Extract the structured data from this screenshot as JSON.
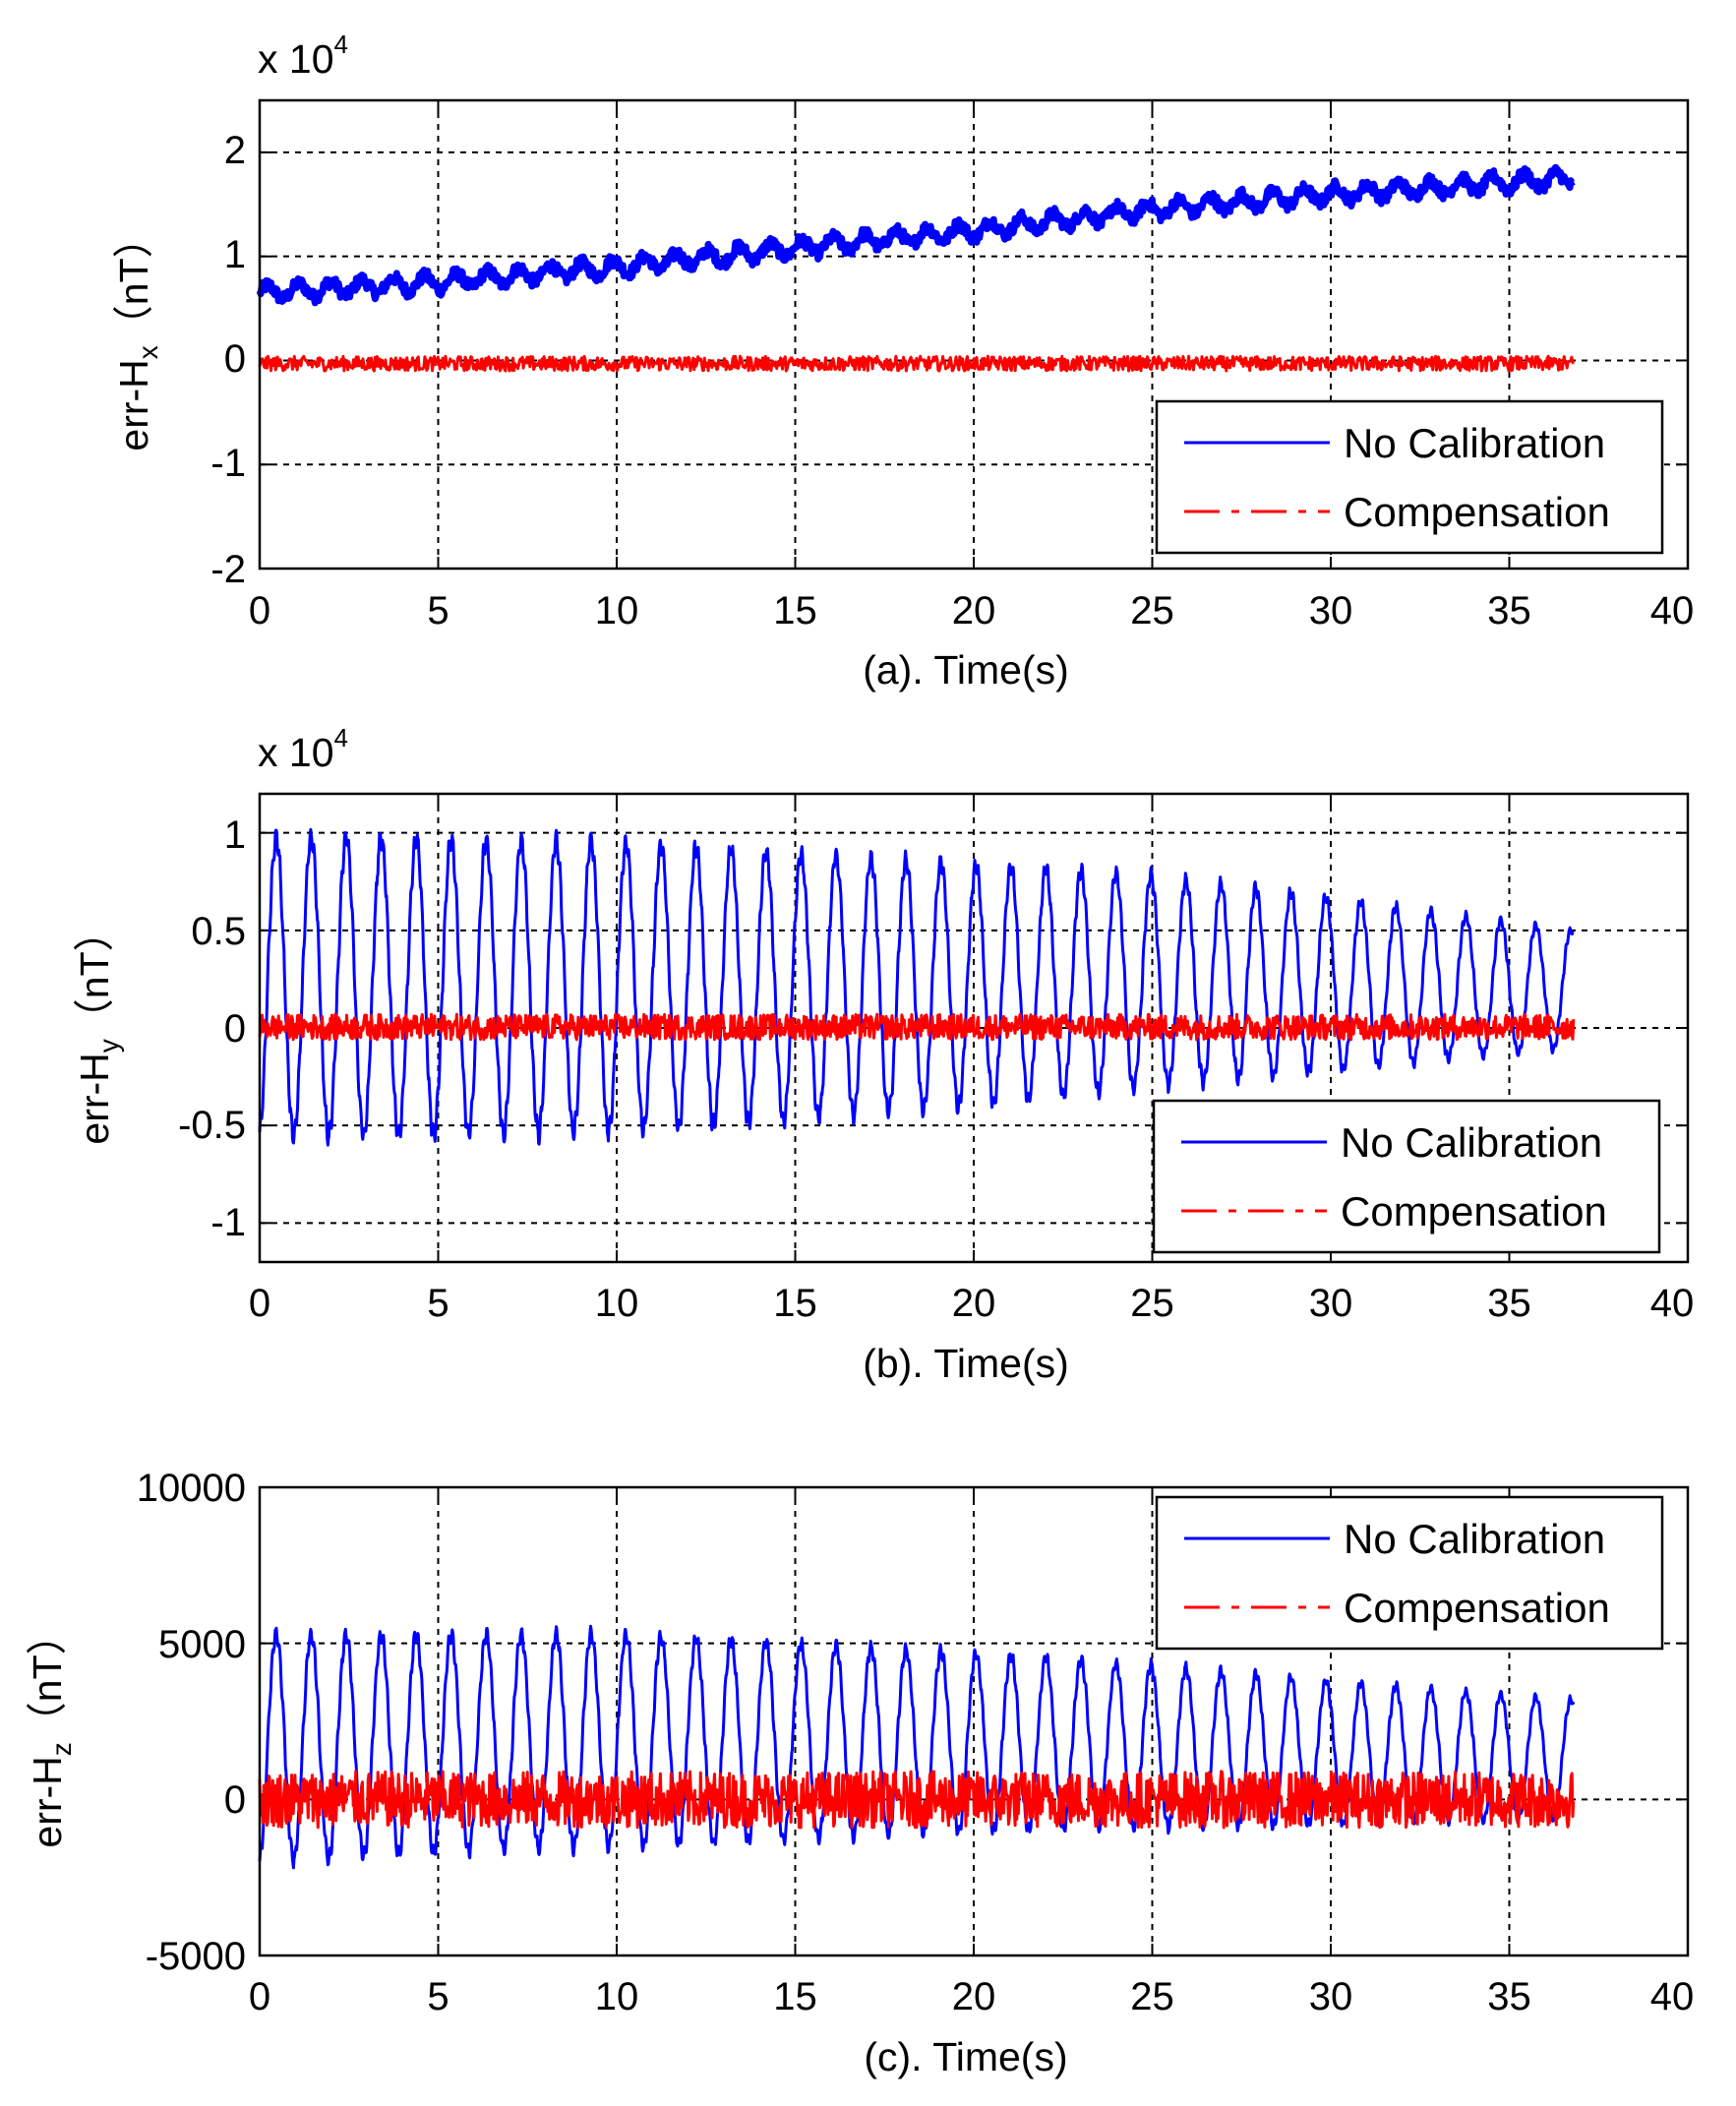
{
  "chart_data": [
    {
      "type": "line",
      "panel": "a",
      "xlabel": "(a). Time(s)",
      "ylabel": "err-H",
      "ylabel_sub": "x",
      "ylabel_unit": "（nT）",
      "multiplier_base": "x 10",
      "multiplier_exp": "4",
      "xlim": [
        0,
        40
      ],
      "ylim": [
        -2,
        2.5
      ],
      "xticks": [
        0,
        5,
        10,
        15,
        20,
        25,
        30,
        35,
        40
      ],
      "yticks": [
        -2,
        -1,
        0,
        1,
        2
      ],
      "x_tick_labels": [
        "0",
        "5",
        "10",
        "15",
        "20",
        "25",
        "30",
        "35",
        "40"
      ],
      "y_tick_labels": [
        "-2",
        "-1",
        "0",
        "1",
        "2"
      ],
      "grid": true,
      "legend_position": "bottom-right",
      "series": [
        {
          "name": "No Calibration",
          "color": "#0000ff",
          "style": "solid",
          "x": [
            0,
            5,
            10,
            15,
            20,
            25,
            30,
            36.8
          ],
          "values": [
            0.65,
            0.75,
            0.9,
            1.08,
            1.25,
            1.45,
            1.6,
            1.75
          ]
        },
        {
          "name": "Compensation",
          "color": "#ff0000",
          "style": "dashdot",
          "x": [
            0,
            36.8
          ],
          "values": [
            -0.03,
            -0.03
          ]
        }
      ]
    },
    {
      "type": "line",
      "panel": "b",
      "xlabel": "(b). Time(s)",
      "ylabel": "err-H",
      "ylabel_sub": "y",
      "ylabel_unit": "（nT）",
      "multiplier_base": "x 10",
      "multiplier_exp": "4",
      "xlim": [
        0,
        40
      ],
      "ylim": [
        -1.2,
        1.2
      ],
      "xticks": [
        0,
        5,
        10,
        15,
        20,
        25,
        30,
        35,
        40
      ],
      "yticks": [
        -1,
        -0.5,
        0,
        0.5,
        1
      ],
      "x_tick_labels": [
        "0",
        "5",
        "10",
        "15",
        "20",
        "25",
        "30",
        "35",
        "40"
      ],
      "y_tick_labels": [
        "-1",
        "-0.5",
        "0",
        "0.5",
        "1"
      ],
      "grid": true,
      "legend_position": "bottom-right",
      "series": [
        {
          "name": "No Calibration",
          "color": "#0000ff",
          "style": "solid",
          "x": [
            0,
            5,
            10,
            15,
            20,
            25,
            30,
            36.8
          ],
          "max": [
            0.98,
            0.97,
            0.95,
            0.9,
            0.84,
            0.78,
            0.67,
            0.5
          ],
          "min": [
            -0.55,
            -0.55,
            -0.53,
            -0.47,
            -0.4,
            -0.3,
            -0.22,
            -0.1
          ]
        },
        {
          "name": "Compensation",
          "color": "#ff0000",
          "style": "dashdot",
          "x": [
            0,
            36.8
          ],
          "max": [
            0.07,
            0.07
          ],
          "min": [
            -0.06,
            -0.06
          ]
        }
      ]
    },
    {
      "type": "line",
      "panel": "c",
      "xlabel": "(c). Time(s)",
      "ylabel": "err-H",
      "ylabel_sub": "z",
      "ylabel_unit": "（nT）",
      "xlim": [
        0,
        40
      ],
      "ylim": [
        -5000,
        10000
      ],
      "xticks": [
        0,
        5,
        10,
        15,
        20,
        25,
        30,
        35,
        40
      ],
      "yticks": [
        -5000,
        0,
        5000,
        10000
      ],
      "x_tick_labels": [
        "0",
        "5",
        "10",
        "15",
        "20",
        "25",
        "30",
        "35",
        "40"
      ],
      "y_tick_labels": [
        "-5000",
        "0",
        "5000",
        "10000"
      ],
      "grid": true,
      "legend_position": "top-right",
      "series": [
        {
          "name": "No Calibration",
          "color": "#0000ff",
          "style": "solid",
          "x": [
            0,
            5,
            10,
            15,
            20,
            25,
            30,
            36.8
          ],
          "max": [
            5300,
            5300,
            5300,
            5000,
            4700,
            4300,
            3800,
            3200
          ],
          "min": [
            -2000,
            -1700,
            -1500,
            -1300,
            -1000,
            -900,
            -800,
            -600
          ]
        },
        {
          "name": "Compensation",
          "color": "#ff0000",
          "style": "dashdot",
          "x": [
            0,
            36.8
          ],
          "max": [
            900,
            900
          ],
          "min": [
            -900,
            -900
          ]
        }
      ]
    }
  ]
}
